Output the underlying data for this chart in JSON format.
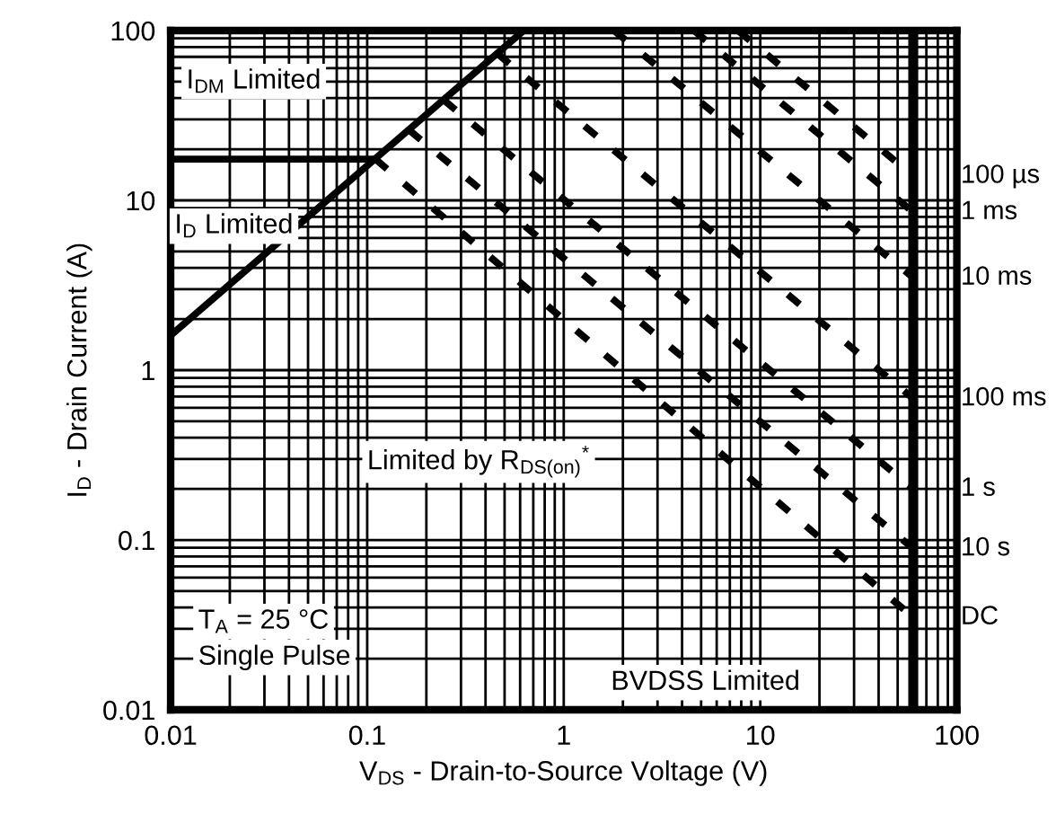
{
  "chart_data": {
    "type": "line",
    "xlabel": "V$_{DS}$ - Drain-to-Source Voltage (V)",
    "ylabel": "I$_{D}$ - Drain Current (A)",
    "log": "xy",
    "xlim": [
      0.01,
      100
    ],
    "ylim": [
      0.01,
      100
    ],
    "xticks": [
      0.01,
      0.1,
      1,
      10,
      100
    ],
    "yticks": [
      0.01,
      0.1,
      1,
      10,
      100
    ],
    "grid": true,
    "legend": false,
    "marker": "none",
    "series": [
      {
        "color": "#000000",
        "line_style": "solid",
        "x": [
          0.01,
          0.625
        ],
        "values": [
          1.6,
          100
        ]
      },
      {
        "color": "#000000",
        "line_style": "solid",
        "x": [
          0.01,
          0.11
        ],
        "values": [
          17.5,
          17.5
        ]
      },
      {
        "name": "100 µs",
        "color": "#000000",
        "line_style": "dashed",
        "x": [
          7.7,
          60
        ],
        "values": [
          100,
          13.9
        ]
      },
      {
        "name": "1 ms",
        "color": "#000000",
        "line_style": "dashed",
        "x": [
          4.6,
          60
        ],
        "values": [
          100,
          8.5
        ]
      },
      {
        "name": "10 ms",
        "color": "#000000",
        "line_style": "dashed",
        "x": [
          1.8,
          60
        ],
        "values": [
          100,
          3.5
        ]
      },
      {
        "name": "100 ms",
        "color": "#000000",
        "line_style": "dashed",
        "x": [
          0.46,
          60
        ],
        "values": [
          73,
          0.68
        ]
      },
      {
        "name": "1 s",
        "color": "#000000",
        "line_style": "dashed",
        "x": [
          0.245,
          60
        ],
        "values": [
          39,
          0.2
        ]
      },
      {
        "name": "10 s",
        "color": "#000000",
        "line_style": "dashed",
        "x": [
          0.163,
          60
        ],
        "values": [
          26,
          0.089
        ]
      },
      {
        "name": "DC",
        "color": "#000000",
        "line_style": "dashed",
        "x": [
          0.11,
          60
        ],
        "values": [
          17.5,
          0.035
        ]
      }
    ],
    "ref_lines": [
      {
        "axis": "x",
        "value": 60,
        "color": "#000000",
        "line_style": "solid"
      }
    ],
    "annotations": [
      "I$_{DM}$ Limited",
      "I$_{D}$ Limited",
      "Limited by R$_{DS(on)}$$^{*}$",
      "T$_{A}$ = 25 °C",
      "Single Pulse",
      "BVDSS Limited"
    ]
  }
}
